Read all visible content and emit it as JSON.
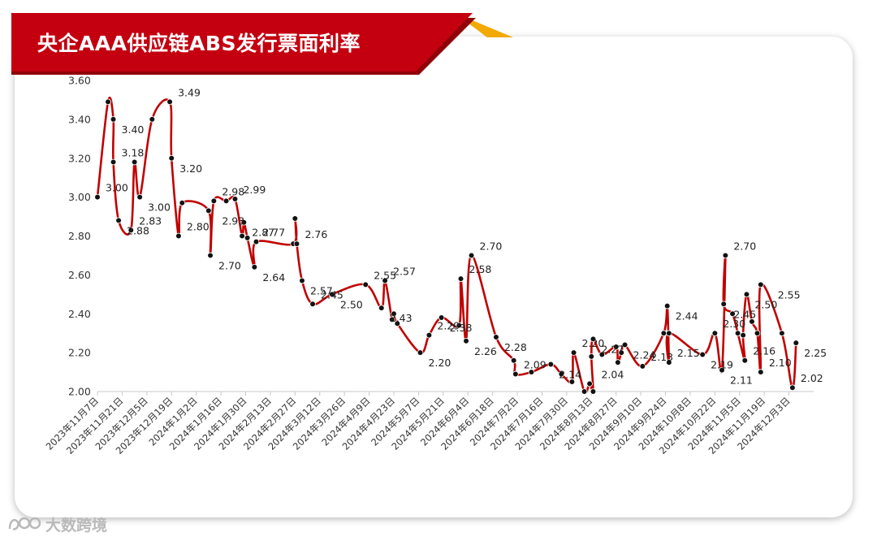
{
  "title": "央企AAA供应链ABS发行票面利率",
  "watermark_text": "大数跨境",
  "colors": {
    "banner": "#c40010",
    "banner_accent": "#f2a900",
    "line": "#c00000",
    "marker": "#111111"
  },
  "chart_data": {
    "type": "line",
    "title": "央企AAA供应链ABS发行票面利率",
    "xlabel": "",
    "ylabel": "",
    "ylim": [
      2.0,
      3.6
    ],
    "yticks": [
      "2.00",
      "2.20",
      "2.40",
      "2.60",
      "2.80",
      "3.00",
      "3.20",
      "3.40",
      "3.60"
    ],
    "grid": false,
    "x_categories": [
      "2023年11月7日",
      "2023年11月21日",
      "2023年12月5日",
      "2023年12月19日",
      "2024年1月2日",
      "2024年1月16日",
      "2024年1月30日",
      "2024年2月13日",
      "2024年2月27日",
      "2024年3月12日",
      "2024年3月26日",
      "2024年4月9日",
      "2024年4月23日",
      "2024年5月7日",
      "2024年5月21日",
      "2024年6月4日",
      "2024年6月18日",
      "2024年7月2日",
      "2024年7月16日",
      "2024年7月30日",
      "2024年8月13日",
      "2024年8月27日",
      "2024年9月10日",
      "2024年9月24日",
      "2024年10月8日",
      "2024年10月22日",
      "2024年11月5日",
      "2024年11月19日",
      "2024年12月3日"
    ],
    "x_range": [
      "2023年11月7日",
      "2024年12月17日"
    ],
    "series": [
      {
        "points": [
          [
            "2023-11-07",
            3.0
          ],
          [
            "2023-11-13",
            3.49
          ],
          [
            "2023-11-16",
            3.4
          ],
          [
            "2023-11-16",
            3.18
          ],
          [
            "2023-11-19",
            2.88
          ],
          [
            "2023-11-26",
            2.83
          ],
          [
            "2023-11-28",
            3.18
          ],
          [
            "2023-12-01",
            3.0
          ],
          [
            "2023-12-08",
            3.4
          ],
          [
            "2023-12-18",
            3.49
          ],
          [
            "2023-12-19",
            3.2
          ],
          [
            "2023-12-23",
            2.8
          ],
          [
            "2023-12-25",
            2.97
          ],
          [
            "2024-01-09",
            2.93
          ],
          [
            "2024-01-10",
            2.7
          ],
          [
            "2024-01-12",
            2.98
          ],
          [
            "2024-01-19",
            2.98
          ],
          [
            "2024-01-24",
            2.99
          ],
          [
            "2024-01-28",
            2.8
          ],
          [
            "2024-01-29",
            2.87
          ],
          [
            "2024-01-31",
            2.79
          ],
          [
            "2024-02-04",
            2.64
          ],
          [
            "2024-02-05",
            2.77
          ],
          [
            "2024-02-26",
            2.76
          ],
          [
            "2024-02-27",
            2.89
          ],
          [
            "2024-02-28",
            2.76
          ],
          [
            "2024-03-02",
            2.57
          ],
          [
            "2024-03-08",
            2.45
          ],
          [
            "2024-03-19",
            2.5
          ],
          [
            "2024-04-07",
            2.55
          ],
          [
            "2024-04-16",
            2.43
          ],
          [
            "2024-04-18",
            2.57
          ],
          [
            "2024-04-22",
            2.37
          ],
          [
            "2024-04-23",
            2.4
          ],
          [
            "2024-04-25",
            2.35
          ],
          [
            "2024-05-08",
            2.2
          ],
          [
            "2024-05-13",
            2.29
          ],
          [
            "2024-05-20",
            2.38
          ],
          [
            "2024-05-30",
            2.34
          ],
          [
            "2024-05-31",
            2.58
          ],
          [
            "2024-06-03",
            2.26
          ],
          [
            "2024-06-06",
            2.7
          ],
          [
            "2024-06-20",
            2.28
          ],
          [
            "2024-06-30",
            2.16
          ],
          [
            "2024-07-01",
            2.09
          ],
          [
            "2024-07-10",
            2.1
          ],
          [
            "2024-07-21",
            2.14
          ],
          [
            "2024-07-27",
            2.09
          ],
          [
            "2024-08-02",
            2.05
          ],
          [
            "2024-08-03",
            2.2
          ],
          [
            "2024-08-09",
            2.0
          ],
          [
            "2024-08-12",
            2.04
          ],
          [
            "2024-08-14",
            2.0
          ],
          [
            "2024-08-13",
            2.18
          ],
          [
            "2024-08-14",
            2.27
          ],
          [
            "2024-08-19",
            2.19
          ],
          [
            "2024-08-27",
            2.23
          ],
          [
            "2024-08-28",
            2.15
          ],
          [
            "2024-08-30",
            2.2
          ],
          [
            "2024-09-01",
            2.24
          ],
          [
            "2024-09-11",
            2.13
          ],
          [
            "2024-09-23",
            2.3
          ],
          [
            "2024-09-25",
            2.44
          ],
          [
            "2024-09-26",
            2.15
          ],
          [
            "2024-09-26",
            2.3
          ],
          [
            "2024-10-15",
            2.19
          ],
          [
            "2024-10-22",
            2.3
          ],
          [
            "2024-10-26",
            2.11
          ],
          [
            "2024-10-28",
            2.7
          ],
          [
            "2024-10-27",
            2.45
          ],
          [
            "2024-11-01",
            2.4
          ],
          [
            "2024-11-04",
            2.3
          ],
          [
            "2024-11-08",
            2.16
          ],
          [
            "2024-11-07",
            2.29
          ],
          [
            "2024-11-09",
            2.5
          ],
          [
            "2024-11-12",
            2.36
          ],
          [
            "2024-11-15",
            2.3
          ],
          [
            "2024-11-17",
            2.1
          ],
          [
            "2024-11-17",
            2.55
          ],
          [
            "2024-11-29",
            2.3
          ],
          [
            "2024-12-05",
            2.02
          ],
          [
            "2024-12-07",
            2.25
          ]
        ]
      }
    ],
    "data_labels": [
      {
        "date": "2023-11-07",
        "value": 3.0,
        "text": "3.00"
      },
      {
        "date": "2023-11-16",
        "value": 3.4,
        "text": "3.40"
      },
      {
        "date": "2023-11-16",
        "value": 3.18,
        "text": "3.18"
      },
      {
        "date": "2023-11-19",
        "value": 2.88,
        "text": "2.88"
      },
      {
        "date": "2023-11-26",
        "value": 2.83,
        "text": "2.83"
      },
      {
        "date": "2023-12-01",
        "value": 3.0,
        "text": "3.00"
      },
      {
        "date": "2023-12-18",
        "value": 3.49,
        "text": "3.49"
      },
      {
        "date": "2023-12-19",
        "value": 3.2,
        "text": "3.20"
      },
      {
        "date": "2023-12-23",
        "value": 2.8,
        "text": "2.80"
      },
      {
        "date": "2024-01-10",
        "value": 2.7,
        "text": "2.70"
      },
      {
        "date": "2024-01-12",
        "value": 2.98,
        "text": "2.98"
      },
      {
        "date": "2024-01-12",
        "value": 2.93,
        "text": "2.93"
      },
      {
        "date": "2024-01-24",
        "value": 2.99,
        "text": "2.99"
      },
      {
        "date": "2024-01-29",
        "value": 2.87,
        "text": "2.87"
      },
      {
        "date": "2024-02-04",
        "value": 2.77,
        "text": "2.77"
      },
      {
        "date": "2024-02-04",
        "value": 2.64,
        "text": "2.64"
      },
      {
        "date": "2024-02-28",
        "value": 2.76,
        "text": "2.76"
      },
      {
        "date": "2024-03-02",
        "value": 2.57,
        "text": "2.57"
      },
      {
        "date": "2024-03-08",
        "value": 2.45,
        "text": "2.45"
      },
      {
        "date": "2024-03-19",
        "value": 2.5,
        "text": "2.50"
      },
      {
        "date": "2024-04-07",
        "value": 2.55,
        "text": "2.55"
      },
      {
        "date": "2024-04-16",
        "value": 2.43,
        "text": "2.43"
      },
      {
        "date": "2024-04-18",
        "value": 2.57,
        "text": "2.57"
      },
      {
        "date": "2024-05-08",
        "value": 2.2,
        "text": "2.20"
      },
      {
        "date": "2024-05-13",
        "value": 2.29,
        "text": "2.29"
      },
      {
        "date": "2024-05-20",
        "value": 2.38,
        "text": "2.38"
      },
      {
        "date": "2024-05-31",
        "value": 2.58,
        "text": "2.58"
      },
      {
        "date": "2024-06-03",
        "value": 2.26,
        "text": "2.26"
      },
      {
        "date": "2024-06-06",
        "value": 2.7,
        "text": "2.70"
      },
      {
        "date": "2024-06-20",
        "value": 2.28,
        "text": "2.28"
      },
      {
        "date": "2024-07-01",
        "value": 2.09,
        "text": "2.09"
      },
      {
        "date": "2024-07-21",
        "value": 2.14,
        "text": "2.14"
      },
      {
        "date": "2024-08-03",
        "value": 2.2,
        "text": "2.20"
      },
      {
        "date": "2024-08-14",
        "value": 2.27,
        "text": "2.27"
      },
      {
        "date": "2024-08-14",
        "value": 2.04,
        "text": "2.04"
      },
      {
        "date": "2024-09-01",
        "value": 2.24,
        "text": "2.24"
      },
      {
        "date": "2024-09-11",
        "value": 2.13,
        "text": "2.13"
      },
      {
        "date": "2024-09-25",
        "value": 2.44,
        "text": "2.44"
      },
      {
        "date": "2024-09-26",
        "value": 2.15,
        "text": "2.15"
      },
      {
        "date": "2024-10-15",
        "value": 2.19,
        "text": "2.19"
      },
      {
        "date": "2024-10-22",
        "value": 2.3,
        "text": "2.30"
      },
      {
        "date": "2024-10-26",
        "value": 2.11,
        "text": "2.11"
      },
      {
        "date": "2024-10-28",
        "value": 2.7,
        "text": "2.70"
      },
      {
        "date": "2024-10-28",
        "value": 2.45,
        "text": "2.45"
      },
      {
        "date": "2024-11-08",
        "value": 2.16,
        "text": "2.16"
      },
      {
        "date": "2024-11-09",
        "value": 2.5,
        "text": "2.50"
      },
      {
        "date": "2024-11-17",
        "value": 2.1,
        "text": "2.10"
      },
      {
        "date": "2024-11-22",
        "value": 2.55,
        "text": "2.55"
      },
      {
        "date": "2024-12-05",
        "value": 2.02,
        "text": "2.02"
      },
      {
        "date": "2024-12-07",
        "value": 2.25,
        "text": "2.25"
      }
    ]
  }
}
